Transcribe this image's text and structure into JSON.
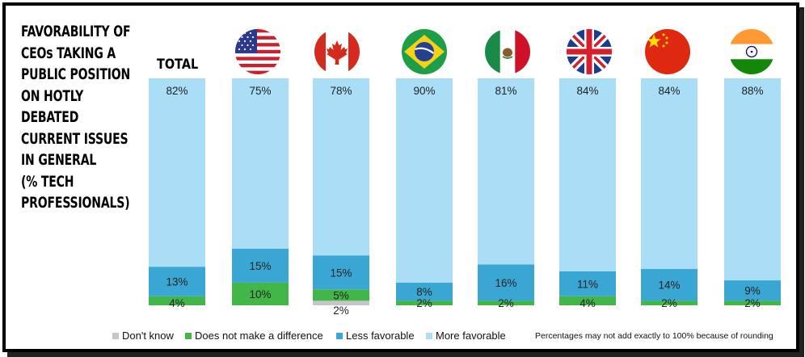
{
  "title_lines": [
    "FAVORABILITY OF",
    "CEOs TAKING A",
    "PUBLIC POSITION",
    "ON HOTLY",
    "DEBATED",
    "CURRENT ISSUES",
    "IN GENERAL",
    "(% TECH",
    "PROFESSIONALS)"
  ],
  "total_label": "TOTAL",
  "flags": [
    {
      "country": "USA",
      "icon": "us-flag-icon"
    },
    {
      "country": "Canada",
      "icon": "canada-flag-icon"
    },
    {
      "country": "Brazil",
      "icon": "brazil-flag-icon"
    },
    {
      "country": "Mexico",
      "icon": "mexico-flag-icon"
    },
    {
      "country": "UK",
      "icon": "uk-flag-icon"
    },
    {
      "country": "China",
      "icon": "china-flag-icon"
    },
    {
      "country": "India",
      "icon": "india-flag-icon"
    }
  ],
  "colors": {
    "dont_know": "#c6c6c6",
    "no_difference": "#43b649",
    "less_favorable": "#3aa6d3",
    "more_favorable": "#a9def6"
  },
  "chart_data": {
    "type": "bar",
    "stacked": true,
    "categories": [
      "TOTAL",
      "USA",
      "Canada",
      "Brazil",
      "Mexico",
      "UK",
      "China",
      "India"
    ],
    "series": [
      {
        "name": "Don't know",
        "values": [
          0,
          0,
          2,
          0,
          0,
          0,
          0,
          0
        ],
        "labels": [
          "",
          "",
          "2%",
          "",
          "",
          "",
          "",
          ""
        ]
      },
      {
        "name": "Does not make a difference",
        "values": [
          4,
          10,
          5,
          2,
          2,
          4,
          2,
          2
        ],
        "labels": [
          "4%",
          "10%",
          "5%",
          "2%",
          "2%",
          "4%",
          "2%",
          "2%"
        ]
      },
      {
        "name": "Less favorable",
        "values": [
          13,
          15,
          15,
          8,
          16,
          11,
          14,
          9
        ],
        "labels": [
          "13%",
          "15%",
          "15%",
          "8%",
          "16%",
          "11%",
          "14%",
          "9%"
        ]
      },
      {
        "name": "More favorable",
        "values": [
          82,
          75,
          78,
          90,
          81,
          84,
          84,
          88
        ],
        "labels": [
          "82%",
          "75%",
          "78%",
          "90%",
          "81%",
          "84%",
          "84%",
          "88%"
        ]
      }
    ],
    "ylim": [
      0,
      100
    ]
  },
  "legend": [
    {
      "label": "Don't know"
    },
    {
      "label": "Does not make a difference"
    },
    {
      "label": "Less favorable"
    },
    {
      "label": "More favorable"
    }
  ],
  "note": "Percentages may not add exactly to 100% because of rounding"
}
